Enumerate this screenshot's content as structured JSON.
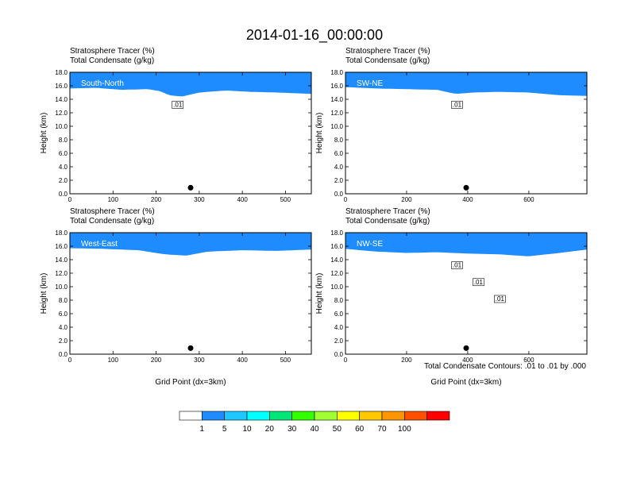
{
  "figure": {
    "title": "2014-01-16_00:00:00",
    "contour_note": "Total Condensate Contours: .01 to .01 by .000"
  },
  "chart_data": [
    {
      "type": "heatmap",
      "name": "South-North",
      "title_line1": "Stratosphere Tracer   (%)",
      "title_line2": "Total Condensate   (g/kg)",
      "xlabel": "",
      "ylabel": "Height (km)",
      "xlim": [
        0,
        560
      ],
      "ylim": [
        0,
        18
      ],
      "xticks": [
        "0",
        "100",
        "200",
        "300",
        "400",
        "500"
      ],
      "xtick_values": [
        0,
        100,
        200,
        300,
        400,
        500
      ],
      "yticks": [
        "0.0",
        "2.0",
        "4.0",
        "6.0",
        "8.0",
        "10.0",
        "12.0",
        "14.0",
        "16.0",
        "18.0"
      ],
      "contour_labels": [
        ".01"
      ],
      "marker_x": 280,
      "tropopause_km": [
        [
          0,
          15.6
        ],
        [
          60,
          15.7
        ],
        [
          120,
          15.4
        ],
        [
          180,
          15.5
        ],
        [
          210,
          15.2
        ],
        [
          230,
          14.6
        ],
        [
          260,
          14.4
        ],
        [
          300,
          15.0
        ],
        [
          360,
          15.3
        ],
        [
          420,
          15.1
        ],
        [
          480,
          15.0
        ],
        [
          560,
          14.8
        ]
      ]
    },
    {
      "type": "heatmap",
      "name": "SW-NE",
      "title_line1": "Stratosphere Tracer   (%)",
      "title_line2": "Total Condensate   (g/kg)",
      "xlabel": "",
      "ylabel": "Height (km)",
      "xlim": [
        0,
        790
      ],
      "ylim": [
        0,
        18
      ],
      "xticks": [
        "0",
        "200",
        "400",
        "600"
      ],
      "xtick_values": [
        0,
        200,
        400,
        600
      ],
      "yticks": [
        "0.0",
        "2.0",
        "4.0",
        "6.0",
        "8.0",
        "10.0",
        "12.0",
        "14.0",
        "16.0",
        "18.0"
      ],
      "contour_labels": [
        ".01"
      ],
      "marker_x": 395,
      "tropopause_km": [
        [
          0,
          15.8
        ],
        [
          100,
          15.6
        ],
        [
          200,
          15.5
        ],
        [
          300,
          15.4
        ],
        [
          360,
          14.8
        ],
        [
          420,
          15.0
        ],
        [
          500,
          15.1
        ],
        [
          600,
          15.0
        ],
        [
          700,
          14.6
        ],
        [
          790,
          14.5
        ]
      ]
    },
    {
      "type": "heatmap",
      "name": "West-East",
      "title_line1": "Stratosphere Tracer   (%)",
      "title_line2": "Total Condensate   (g/kg)",
      "xlabel": "Grid Point (dx=3km)",
      "ylabel": "Height (km)",
      "xlim": [
        0,
        560
      ],
      "ylim": [
        0,
        18
      ],
      "xticks": [
        "0",
        "100",
        "200",
        "300",
        "400",
        "500"
      ],
      "xtick_values": [
        0,
        100,
        200,
        300,
        400,
        500
      ],
      "yticks": [
        "0.0",
        "2.0",
        "4.0",
        "6.0",
        "8.0",
        "10.0",
        "12.0",
        "14.0",
        "16.0",
        "18.0"
      ],
      "contour_labels": [],
      "marker_x": 280,
      "tropopause_km": [
        [
          0,
          15.7
        ],
        [
          80,
          15.6
        ],
        [
          160,
          15.4
        ],
        [
          220,
          14.8
        ],
        [
          270,
          14.6
        ],
        [
          320,
          15.2
        ],
        [
          400,
          15.4
        ],
        [
          480,
          15.3
        ],
        [
          560,
          15.5
        ]
      ]
    },
    {
      "type": "heatmap",
      "name": "NW-SE",
      "title_line1": "Stratosphere Tracer   (%)",
      "title_line2": "Total Condensate   (g/kg)",
      "xlabel": "Grid Point (dx=3km)",
      "ylabel": "Height (km)",
      "xlim": [
        0,
        790
      ],
      "ylim": [
        0,
        18
      ],
      "xticks": [
        "0",
        "200",
        "400",
        "600"
      ],
      "xtick_values": [
        0,
        200,
        400,
        600
      ],
      "yticks": [
        "0.0",
        "2.0",
        "4.0",
        "6.0",
        "8.0",
        "10.0",
        "12.0",
        "14.0",
        "16.0",
        "18.0"
      ],
      "contour_labels": [
        ".01",
        ".01",
        ".01"
      ],
      "marker_x": 395,
      "tropopause_km": [
        [
          0,
          15.6
        ],
        [
          100,
          15.2
        ],
        [
          200,
          15.0
        ],
        [
          300,
          15.1
        ],
        [
          400,
          14.9
        ],
        [
          500,
          14.8
        ],
        [
          600,
          14.5
        ],
        [
          700,
          15.0
        ],
        [
          790,
          15.5
        ]
      ]
    }
  ],
  "colorbar": {
    "labels": [
      "1",
      "5",
      "10",
      "20",
      "30",
      "40",
      "50",
      "60",
      "70",
      "100"
    ],
    "colors": [
      "#ffffff",
      "#1e8cff",
      "#1ec8ff",
      "#00ffff",
      "#00e678",
      "#32ff00",
      "#a0ff32",
      "#ffff00",
      "#ffc800",
      "#ff9600",
      "#ff5000",
      "#ff0000"
    ]
  }
}
